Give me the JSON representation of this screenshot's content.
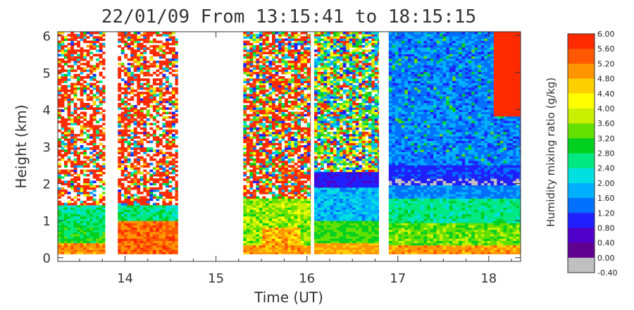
{
  "chart_data": {
    "type": "heatmap",
    "title": "22/01/09 From 13:15:41 to 18:15:15",
    "xlabel": "Time (UT)",
    "ylabel": "Height (km)",
    "xlim": [
      13.26,
      18.35
    ],
    "ylim": [
      -0.1,
      6.1
    ],
    "xticks": [
      "14",
      "15",
      "16",
      "17",
      "18"
    ],
    "yticks": [
      "0",
      "1",
      "2",
      "3",
      "4",
      "5",
      "6"
    ],
    "data_blocks": [
      [
        13.26,
        13.78
      ],
      [
        13.92,
        14.58
      ],
      [
        15.3,
        16.04
      ],
      [
        16.08,
        16.79
      ],
      [
        16.9,
        18.35
      ]
    ],
    "colorbar": {
      "label": "Humidity mixing ratio (g/kg)",
      "ticks": [
        "6.00",
        "5.60",
        "5.20",
        "4.80",
        "4.40",
        "4.00",
        "3.60",
        "3.20",
        "2.80",
        "2.40",
        "2.00",
        "1.60",
        "1.20",
        "0.80",
        "0.40",
        "0.00",
        "-0.40"
      ],
      "colors": [
        "#ff2a00",
        "#ff5800",
        "#ff9600",
        "#ffd000",
        "#ffff00",
        "#c8f000",
        "#64e000",
        "#00d020",
        "#00e880",
        "#00e0e0",
        "#00b0ff",
        "#0070ff",
        "#2020ff",
        "#5000c8",
        "#600090",
        "#c0c0c0"
      ]
    }
  }
}
